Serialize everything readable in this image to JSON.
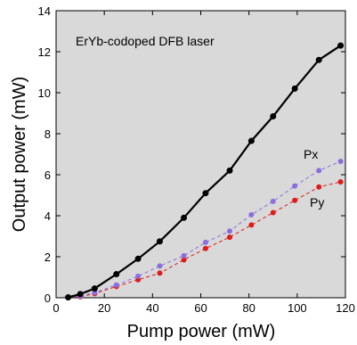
{
  "chart_data": {
    "type": "line",
    "annotation": "ErYb-codoped DFB laser",
    "xlabel": "Pump power (mW)",
    "ylabel": "Output power (mW)",
    "xlim": [
      0,
      120
    ],
    "ylim": [
      0,
      14
    ],
    "xticks": [
      0,
      20,
      40,
      60,
      80,
      100,
      120
    ],
    "yticks": [
      0,
      2,
      4,
      6,
      8,
      10,
      12,
      14
    ],
    "plot_background": "#d9d9d9",
    "grid": false,
    "series": [
      {
        "name": "",
        "color": "#000000",
        "line_style": "solid",
        "x": [
          5,
          10,
          16,
          25,
          34,
          43,
          53,
          62,
          72,
          81,
          90,
          99,
          109,
          118
        ],
        "y": [
          0.02,
          0.18,
          0.45,
          1.15,
          1.9,
          2.75,
          3.9,
          5.1,
          6.2,
          7.65,
          8.85,
          10.2,
          11.6,
          12.3
        ]
      },
      {
        "name": "Px",
        "color": "#8a6fdc",
        "line_style": "dashed",
        "x": [
          5,
          10,
          16,
          25,
          34,
          43,
          53,
          62,
          72,
          81,
          90,
          99,
          109,
          118
        ],
        "y": [
          0.02,
          0.08,
          0.25,
          0.62,
          1.05,
          1.55,
          2.05,
          2.7,
          3.25,
          4.05,
          4.7,
          5.45,
          6.2,
          6.65
        ]
      },
      {
        "name": "Py",
        "color": "#e01a1a",
        "line_style": "dashed",
        "x": [
          5,
          10,
          16,
          25,
          34,
          43,
          53,
          62,
          72,
          81,
          90,
          99,
          109,
          118
        ],
        "y": [
          0.0,
          0.05,
          0.2,
          0.55,
          0.88,
          1.2,
          1.85,
          2.4,
          2.95,
          3.55,
          4.15,
          4.75,
          5.4,
          5.65
        ]
      }
    ]
  }
}
